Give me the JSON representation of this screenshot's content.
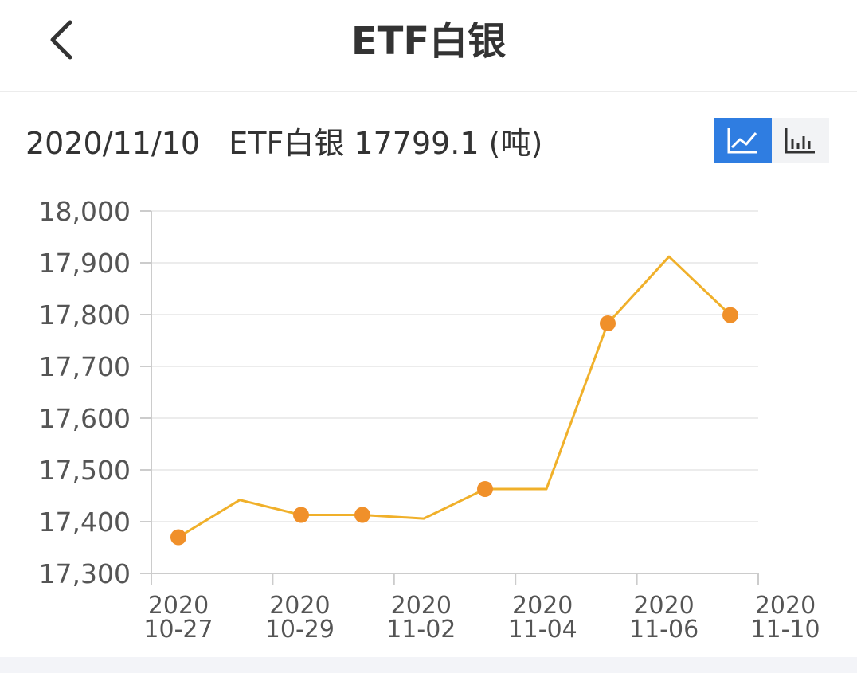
{
  "header": {
    "title": "ETF白银"
  },
  "info_line": "2020/11/10   ETF白银 17799.1 (吨)",
  "toggle": {
    "active": "line-chart",
    "items": [
      "line-chart-icon",
      "bar-chart-icon"
    ]
  },
  "colors": {
    "line": "#f0b02a",
    "marker": "#f0902a",
    "accent": "#2f7de1"
  },
  "chart_data": {
    "type": "line",
    "ylim": [
      17300,
      18000
    ],
    "yticks": [
      "18,000",
      "17,900",
      "17,800",
      "17,700",
      "17,600",
      "17,500",
      "17,400",
      "17,300"
    ],
    "ytick_values": [
      18000,
      17900,
      17800,
      17700,
      17600,
      17500,
      17400,
      17300
    ],
    "xtick_labels": [
      {
        "year": "2020",
        "date": "10-27"
      },
      {
        "year": "2020",
        "date": "10-29"
      },
      {
        "year": "2020",
        "date": "11-02"
      },
      {
        "year": "2020",
        "date": "11-04"
      },
      {
        "year": "2020",
        "date": "11-06"
      },
      {
        "year": "2020",
        "date": "11-10"
      }
    ],
    "values": [
      17370,
      17442,
      17413,
      17413,
      17406,
      17463,
      17463,
      17783,
      17912,
      17799.1
    ],
    "markers": [
      true,
      false,
      true,
      true,
      false,
      true,
      false,
      true,
      false,
      true
    ],
    "grid": true
  }
}
